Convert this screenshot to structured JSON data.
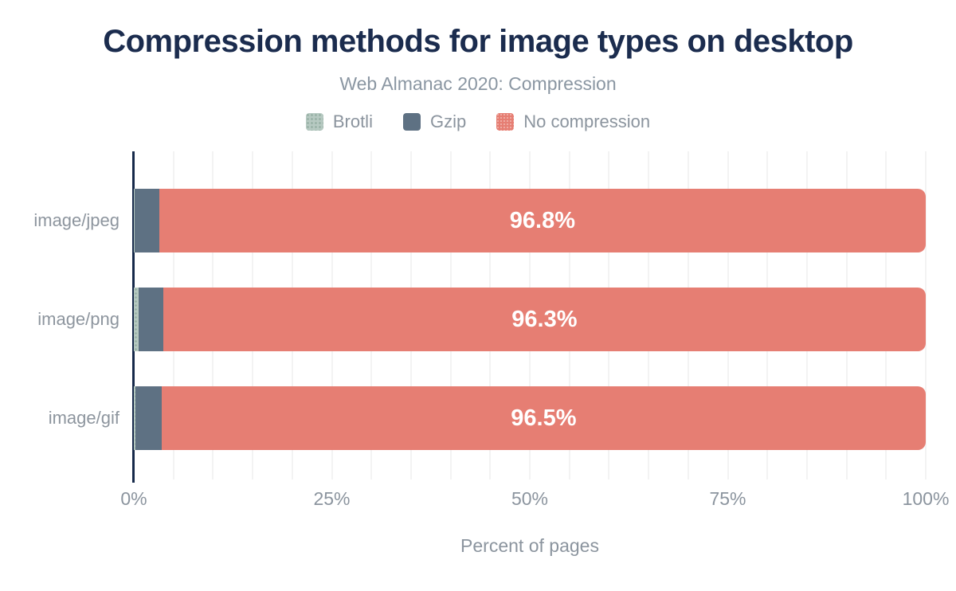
{
  "header": {
    "title": "Compression methods for image types on desktop",
    "subtitle": "Web Almanac 2020: Compression"
  },
  "legend": {
    "items": [
      {
        "label": "Brotli",
        "color": "#b6c9c1",
        "pattern": "dots",
        "dot_color": "#97b0a5"
      },
      {
        "label": "Gzip",
        "color": "#5e7183",
        "pattern": "solid"
      },
      {
        "label": "No compression",
        "color": "#e67e73",
        "pattern": "dots-light",
        "dot_color": "rgba(255,255,255,0.4)"
      }
    ]
  },
  "chart_data": {
    "type": "bar",
    "orientation": "horizontal-stacked",
    "title": "Compression methods for image types on desktop",
    "subtitle": "Web Almanac 2020: Compression",
    "categories": [
      "image/jpeg",
      "image/png",
      "image/gif"
    ],
    "series": [
      {
        "name": "Brotli",
        "color": "#b6c9c1",
        "pattern": "dots",
        "dot_color": "#97b0a5",
        "values": [
          0.1,
          0.6,
          0.2
        ]
      },
      {
        "name": "Gzip",
        "color": "#5e7183",
        "pattern": "solid",
        "values": [
          3.1,
          3.1,
          3.3
        ]
      },
      {
        "name": "No compression",
        "color": "#e67e73",
        "pattern": "solid",
        "values": [
          96.8,
          96.3,
          96.5
        ]
      }
    ],
    "bar_labels": [
      "96.8%",
      "96.3%",
      "96.5%"
    ],
    "xlabel": "Percent of pages",
    "ylabel": "",
    "xlim": [
      0,
      100
    ],
    "x_ticks": [
      {
        "value": 0,
        "label": "0%"
      },
      {
        "value": 25,
        "label": "25%"
      },
      {
        "value": 50,
        "label": "50%"
      },
      {
        "value": 75,
        "label": "75%"
      },
      {
        "value": 100,
        "label": "100%"
      }
    ],
    "grid": {
      "minor_step": 5,
      "color": "#f3f3f3",
      "visible": true
    },
    "legend_position": "top",
    "axis_color": "#16294a",
    "label_color": "#8b949e",
    "value_label_color": "#ffffff"
  }
}
